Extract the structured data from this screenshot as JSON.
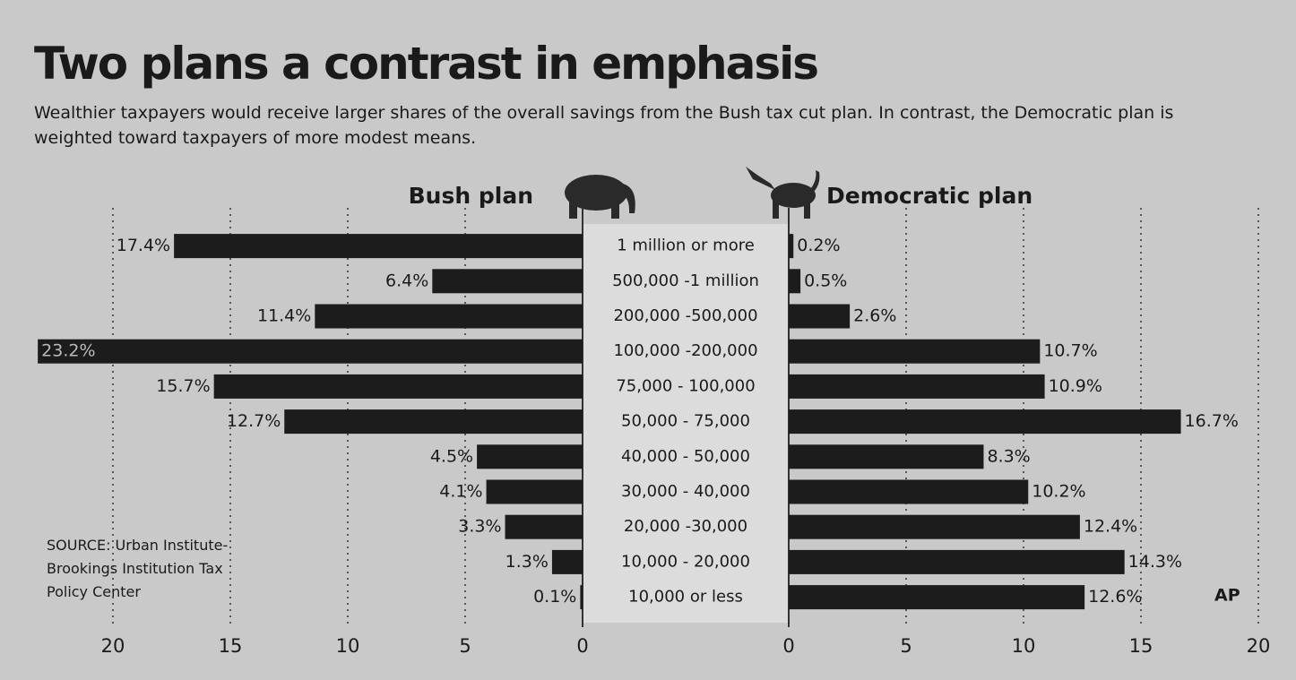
{
  "chart_data": {
    "type": "butterfly",
    "title": "Two plans a contrast in emphasis",
    "subtitle": "Wealthier taxpayers would receive larger shares of the overall savings from the Bush tax cut plan. In contrast, the Democratic plan is weighted toward taxpayers of more modest means.",
    "categories": [
      "1 million or more",
      "500,000 -1 million",
      "200,000 -500,000",
      "100,000 -200,000",
      "75,000 - 100,000",
      "50,000 - 75,000",
      "40,000 - 50,000",
      "30,000 - 40,000",
      "20,000 -30,000",
      "10,000 - 20,000",
      "10,000 or less"
    ],
    "series": [
      {
        "name": "Bush plan",
        "color": "#1c1c1c",
        "values": [
          17.4,
          6.4,
          11.4,
          23.2,
          15.7,
          12.7,
          4.5,
          4.1,
          3.3,
          1.3,
          0.1
        ],
        "value_labels": [
          "17.4%",
          "6.4%",
          "11.4%",
          "23.2%",
          "15.7%",
          "12.7%",
          "4.5%",
          "4.1%",
          "3.3%",
          "1.3%",
          "0.1%"
        ]
      },
      {
        "name": "Democratic plan",
        "color": "#1c1c1c",
        "values": [
          0.2,
          0.5,
          2.6,
          10.7,
          10.9,
          16.7,
          8.3,
          10.2,
          12.4,
          14.3,
          12.6
        ],
        "value_labels": [
          "0.2%",
          "0.5%",
          "2.6%",
          "10.7%",
          "10.9%",
          "16.7%",
          "8.3%",
          "10.2%",
          "12.4%",
          "14.3%",
          "12.6%"
        ]
      }
    ],
    "xlim": [
      0,
      20
    ],
    "xticks": [
      0,
      5,
      10,
      15,
      20
    ],
    "grid": true,
    "source": "SOURCE: Urban Institute-Brookings Institution Tax Policy Center",
    "credit": "AP"
  }
}
